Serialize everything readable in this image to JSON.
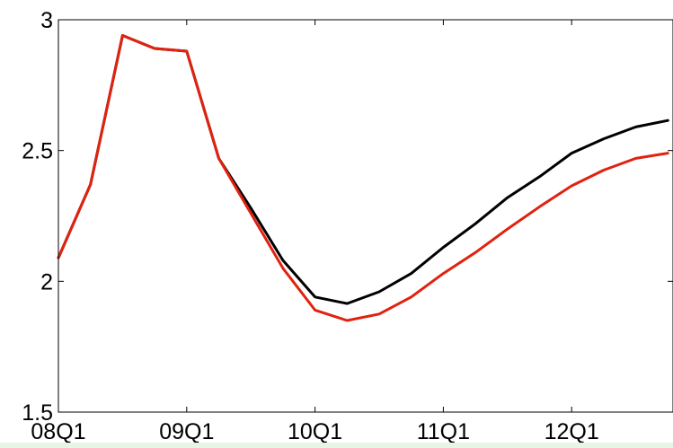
{
  "chart_data": {
    "type": "line",
    "title": "",
    "xlabel": "",
    "ylabel": "",
    "x_ticks": [
      "08Q1",
      "09Q1",
      "10Q1",
      "11Q1",
      "12Q1"
    ],
    "y_ticks": [
      "1.5",
      "2",
      "2.5",
      "3"
    ],
    "ylim": [
      1.5,
      3.0
    ],
    "xlim": [
      0,
      19
    ],
    "grid": false,
    "legend": "none",
    "x": [
      "08Q1",
      "08Q2",
      "08Q3",
      "08Q4",
      "09Q1",
      "09Q2",
      "09Q3",
      "09Q4",
      "10Q1",
      "10Q2",
      "10Q3",
      "10Q4",
      "11Q1",
      "11Q2",
      "11Q3",
      "11Q4",
      "12Q1",
      "12Q2",
      "12Q3",
      "12Q4"
    ],
    "series": [
      {
        "color": "#000000",
        "values": [
          2.09,
          2.37,
          2.94,
          2.89,
          2.88,
          2.47,
          2.28,
          2.08,
          1.94,
          1.915,
          1.96,
          2.03,
          2.13,
          2.22,
          2.32,
          2.4,
          2.49,
          2.545,
          2.59,
          2.615
        ]
      },
      {
        "color": "#e0220f",
        "values": [
          2.09,
          2.37,
          2.94,
          2.89,
          2.88,
          2.47,
          2.26,
          2.05,
          1.89,
          1.85,
          1.875,
          1.94,
          2.03,
          2.11,
          2.2,
          2.285,
          2.365,
          2.425,
          2.47,
          2.49
        ]
      }
    ]
  }
}
